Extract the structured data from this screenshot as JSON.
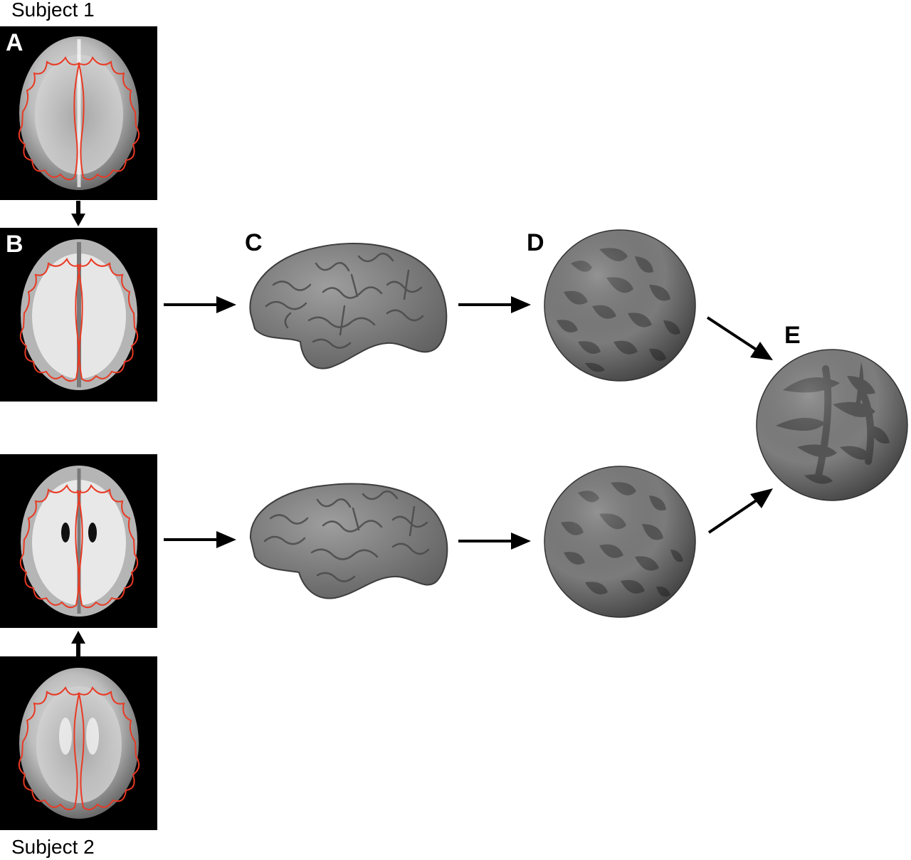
{
  "labels": {
    "subject1": "Subject 1",
    "subject2": "Subject 2"
  },
  "panels": {
    "A": "A",
    "B": "B",
    "C": "C",
    "D": "D",
    "E": "E"
  },
  "colors": {
    "contour": "#e83a24",
    "sphere_light": "#7a7a7a",
    "sphere_dark": "#555555",
    "brain_surface": "#8a8a8a"
  }
}
